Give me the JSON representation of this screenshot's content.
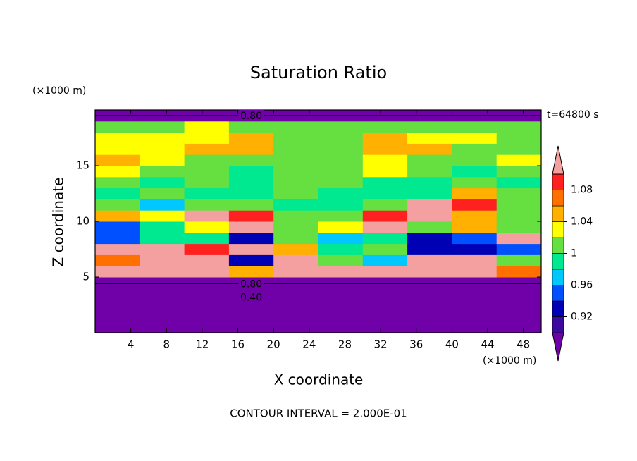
{
  "chart_data": {
    "type": "contour",
    "title": "Saturation Ratio",
    "x_label": "X coordinate",
    "y_label": "Z coordinate",
    "x_unit": "(×1000 m)",
    "y_unit": "(×1000 m)",
    "annotation": "t=64800 s",
    "footer": "CONTOUR INTERVAL = 2.000E-01",
    "xlim": [
      0,
      50
    ],
    "ylim": [
      0,
      20
    ],
    "xticks": [
      4,
      8,
      12,
      16,
      20,
      24,
      28,
      32,
      36,
      40,
      44,
      48
    ],
    "yticks": [
      5,
      10,
      15
    ],
    "x_edges": [
      0,
      5,
      10,
      15,
      20,
      25,
      30,
      35,
      40,
      45,
      50
    ],
    "z_edges": [
      0,
      1,
      2,
      3,
      4,
      5,
      6,
      7,
      8,
      9,
      10,
      11,
      12,
      13,
      14,
      15,
      16,
      17,
      18,
      19,
      20
    ],
    "field": [
      [
        0.3,
        0.3,
        0.3,
        0.3,
        0.3,
        0.3,
        0.3,
        0.3,
        0.3,
        0.3
      ],
      [
        0.35,
        0.35,
        0.35,
        0.35,
        0.35,
        0.35,
        0.35,
        0.35,
        0.35,
        0.35
      ],
      [
        0.4,
        0.4,
        0.4,
        0.4,
        0.4,
        0.4,
        0.4,
        0.4,
        0.4,
        0.4
      ],
      [
        0.6,
        0.6,
        0.6,
        0.6,
        0.6,
        0.6,
        0.6,
        0.6,
        0.6,
        0.6
      ],
      [
        0.88,
        0.88,
        0.88,
        0.88,
        0.88,
        0.88,
        0.88,
        0.88,
        0.88,
        0.88
      ],
      [
        1.12,
        1.12,
        1.12,
        1.04,
        1.12,
        1.12,
        1.12,
        1.12,
        1.12,
        1.06
      ],
      [
        1.06,
        1.12,
        1.12,
        0.93,
        1.12,
        1.01,
        0.97,
        1.12,
        1.12,
        1.0
      ],
      [
        1.12,
        1.12,
        1.08,
        1.12,
        1.05,
        0.99,
        1.0,
        0.93,
        0.92,
        0.95
      ],
      [
        0.95,
        0.98,
        0.99,
        0.93,
        1.0,
        0.97,
        0.98,
        0.93,
        0.95,
        1.12
      ],
      [
        0.94,
        0.99,
        1.02,
        1.12,
        1.0,
        1.03,
        1.12,
        1.01,
        1.05,
        1.0
      ],
      [
        1.05,
        1.02,
        1.12,
        1.09,
        1.0,
        1.0,
        1.08,
        1.12,
        1.05,
        1.01
      ],
      [
        1.0,
        0.97,
        1.0,
        1.01,
        0.99,
        0.99,
        1.0,
        1.12,
        1.09,
        1.0
      ],
      [
        0.99,
        1.0,
        0.99,
        0.99,
        1.0,
        0.99,
        0.99,
        0.99,
        1.05,
        1.0
      ],
      [
        1.01,
        0.99,
        1.0,
        0.99,
        1.0,
        1.0,
        0.99,
        0.99,
        1.0,
        0.99
      ],
      [
        1.03,
        1.0,
        1.01,
        0.99,
        1.0,
        1.0,
        1.02,
        1.0,
        0.99,
        1.0
      ],
      [
        1.04,
        1.03,
        1.0,
        1.0,
        1.0,
        1.01,
        1.03,
        1.0,
        1.0,
        1.02
      ],
      [
        1.02,
        1.03,
        1.05,
        1.04,
        1.01,
        1.0,
        1.05,
        1.04,
        1.0,
        1.01
      ],
      [
        1.03,
        1.02,
        1.02,
        1.04,
        1.0,
        1.01,
        1.04,
        1.02,
        1.02,
        1.0
      ],
      [
        1.01,
        1.0,
        1.02,
        1.01,
        1.0,
        1.0,
        1.01,
        1.0,
        1.01,
        1.0
      ],
      [
        0.8,
        0.8,
        0.8,
        0.8,
        0.8,
        0.8,
        0.8,
        0.8,
        0.8,
        0.8
      ]
    ],
    "levels": [
      0.9,
      0.92,
      0.94,
      0.96,
      0.98,
      1.0,
      1.02,
      1.04,
      1.06,
      1.08,
      1.1
    ],
    "colors": [
      "#7000a8",
      "#3c0a9c",
      "#0000b4",
      "#0050ff",
      "#00c8ff",
      "#00e890",
      "#66e040",
      "#ffff00",
      "#ffb000",
      "#ff7000",
      "#ff2020",
      "#f4a0a0"
    ],
    "colorbar_ticks": [
      0.92,
      0.96,
      1,
      1.04,
      1.08
    ],
    "contour_labels": [
      {
        "value": 0.8,
        "label": "0.80",
        "x": 17.5,
        "z": 19.5
      },
      {
        "value": 0.8,
        "label": "0.80",
        "x": 17.5,
        "z": 4.4
      },
      {
        "value": 0.4,
        "label": "0.40",
        "x": 17.5,
        "z": 3.2
      }
    ]
  }
}
